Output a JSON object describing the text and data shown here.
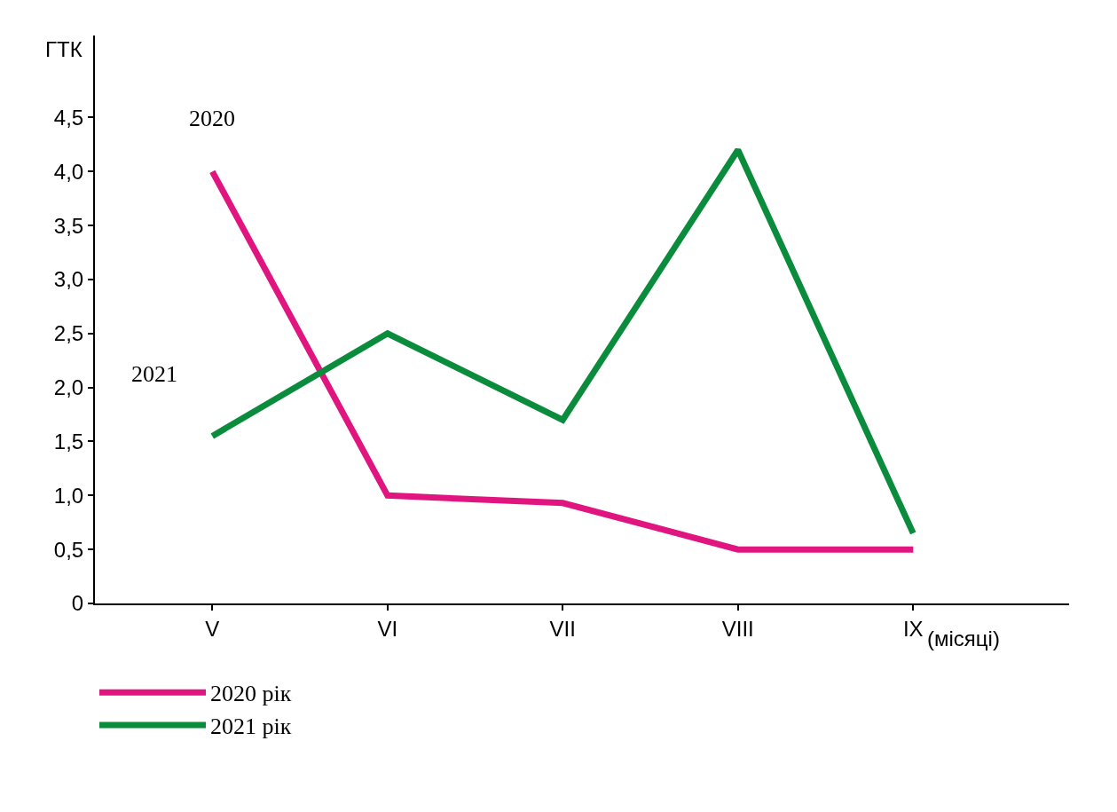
{
  "chart_data": {
    "type": "line",
    "ylabel": "ГТК",
    "xlabel": "(місяці)",
    "categories": [
      "V",
      "VI",
      "VII",
      "VIII",
      "IX"
    ],
    "ylim": [
      0,
      5.26
    ],
    "yticks": [
      {
        "value": 0,
        "label": "0"
      },
      {
        "value": 0.5,
        "label": "0,5"
      },
      {
        "value": 1,
        "label": "1,0"
      },
      {
        "value": 1.5,
        "label": "1,5"
      },
      {
        "value": 2,
        "label": "2,0"
      },
      {
        "value": 2.5,
        "label": "2,5"
      },
      {
        "value": 3,
        "label": "3,0"
      },
      {
        "value": 3.5,
        "label": "3,5"
      },
      {
        "value": 4,
        "label": "4,0"
      },
      {
        "value": 4.5,
        "label": "4,5"
      }
    ],
    "series": [
      {
        "name": "2020 рік",
        "color": "#e0157f",
        "values": [
          4.0,
          1.0,
          0.93,
          0.5,
          0.5
        ]
      },
      {
        "name": "2021 рік",
        "color": "#0a8c3c",
        "values": [
          1.55,
          2.5,
          1.7,
          4.2,
          0.65
        ]
      }
    ],
    "annotations": [
      "2020",
      "2021"
    ],
    "legend": "bottom left",
    "marker": "none",
    "line_style": "solid"
  }
}
